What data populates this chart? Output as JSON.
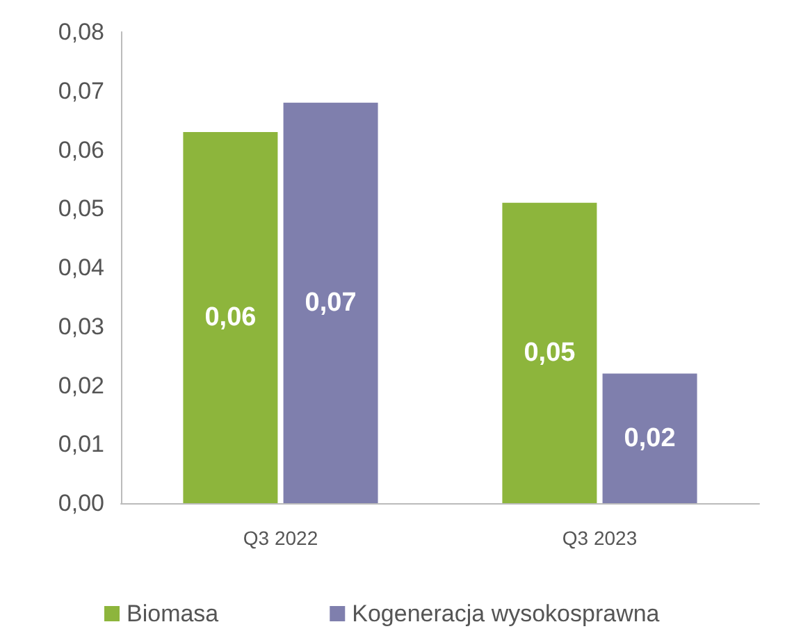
{
  "chart_data": {
    "type": "bar",
    "categories": [
      "Q3 2022",
      "Q3 2023"
    ],
    "series": [
      {
        "name": "Biomasa",
        "color": "#8db53c",
        "values": [
          0.063,
          0.051
        ],
        "value_labels": [
          "0,06",
          "0,05"
        ]
      },
      {
        "name": "Kogeneracja wysokosprawna",
        "color": "#7f7fad",
        "values": [
          0.068,
          0.022
        ],
        "value_labels": [
          "0,07",
          "0,02"
        ]
      }
    ],
    "ylim": [
      0,
      0.08
    ],
    "yticks": [
      {
        "value": 0,
        "label": "0,00"
      },
      {
        "value": 0.01,
        "label": "0,01"
      },
      {
        "value": 0.02,
        "label": "0,02"
      },
      {
        "value": 0.03,
        "label": "0,03"
      },
      {
        "value": 0.04,
        "label": "0,04"
      },
      {
        "value": 0.05,
        "label": "0,05"
      },
      {
        "value": 0.06,
        "label": "0,06"
      },
      {
        "value": 0.07,
        "label": "0,07"
      },
      {
        "value": 0.08,
        "label": "0,08"
      }
    ],
    "grid": false,
    "legend": "bottom"
  }
}
